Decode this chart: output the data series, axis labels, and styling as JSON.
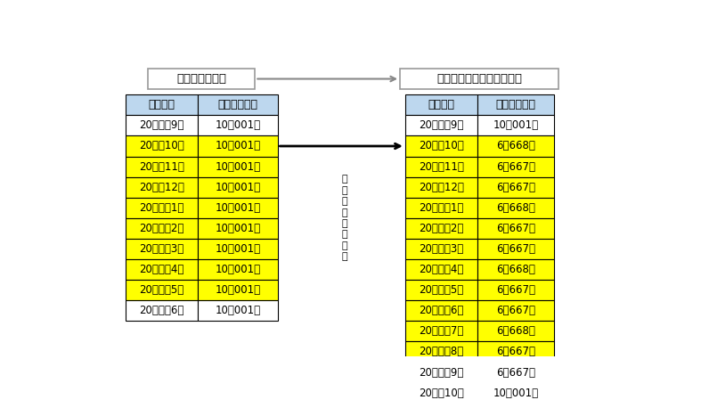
{
  "title_left": "当初の返還計画",
  "title_right": "減額返還適用後の返還計画",
  "header": [
    "返還期日",
    "支払割賦金額"
  ],
  "left_rows": [
    [
      "20＊＊　9月",
      "10，001円"
    ],
    [
      "20＊＊10月",
      "10，001円"
    ],
    [
      "20＊＊11月",
      "10，001円"
    ],
    [
      "20＊＊12月",
      "10，001円"
    ],
    [
      "20＊＊　1月",
      "10，001円"
    ],
    [
      "20＊＊　2月",
      "10，001円"
    ],
    [
      "20＊＊　3月",
      "10，001円"
    ],
    [
      "20＊＊　4月",
      "10，001円"
    ],
    [
      "20＊＊　5月",
      "10，001円"
    ],
    [
      "20＊＊　6月",
      "10，001円"
    ]
  ],
  "left_highlight": [
    false,
    true,
    true,
    true,
    true,
    true,
    true,
    true,
    true,
    false
  ],
  "right_rows": [
    [
      "20＊＊　9月",
      "10，001円"
    ],
    [
      "20＊＊10月",
      "6，668円"
    ],
    [
      "20＊＊11月",
      "6，667円"
    ],
    [
      "20＊＊12月",
      "6，667円"
    ],
    [
      "20＊＊　1月",
      "6，668円"
    ],
    [
      "20＊＊　2月",
      "6，667円"
    ],
    [
      "20＊＊　3月",
      "6，667円"
    ],
    [
      "20＊＊　4月",
      "6，668円"
    ],
    [
      "20＊＊　5月",
      "6，667円"
    ],
    [
      "20＊＊　6月",
      "6，667円"
    ],
    [
      "20＊＊　7月",
      "6，668円"
    ],
    [
      "20＊＊　8月",
      "6，667円"
    ],
    [
      "20＊＊　9月",
      "6，667円"
    ],
    [
      "20＊＊10月",
      "10，001円"
    ]
  ],
  "right_highlight": [
    false,
    true,
    true,
    true,
    true,
    true,
    true,
    true,
    true,
    true,
    true,
    true,
    true,
    false
  ],
  "yellow": "#FFFF00",
  "header_bg": "#BDD7EE",
  "table_border": "#000000",
  "title_border": "#999999",
  "title_bg": "#FFFFFF",
  "bg_color": "#FFFFFF",
  "label_vertical": "減\n額\n返\n還\n適\n用\n期\n間"
}
